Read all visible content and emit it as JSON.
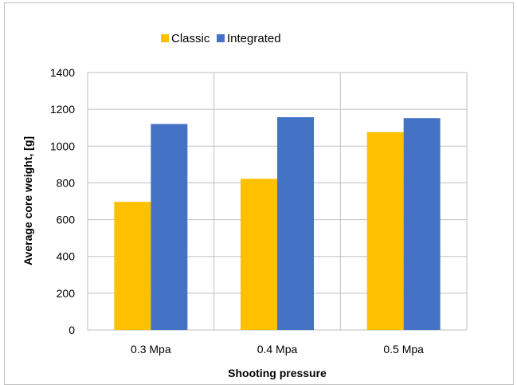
{
  "chart_data": {
    "type": "bar",
    "categories": [
      "0.3 Mpa",
      "0.4 Mpa",
      "0.5 Mpa"
    ],
    "series": [
      {
        "name": "Classic",
        "color": "#ffc000",
        "values": [
          697,
          822,
          1076
        ]
      },
      {
        "name": "Integrated",
        "color": "#4472c4",
        "values": [
          1120,
          1157,
          1152
        ]
      }
    ],
    "xlabel": "Shooting pressure",
    "ylabel": "Average core weight, [g]",
    "ylim": [
      0,
      1400
    ],
    "yticks": [
      0,
      200,
      400,
      600,
      800,
      1000,
      1200,
      1400
    ],
    "grid": "horizontal and category dividers",
    "legend_position": "top-center"
  }
}
